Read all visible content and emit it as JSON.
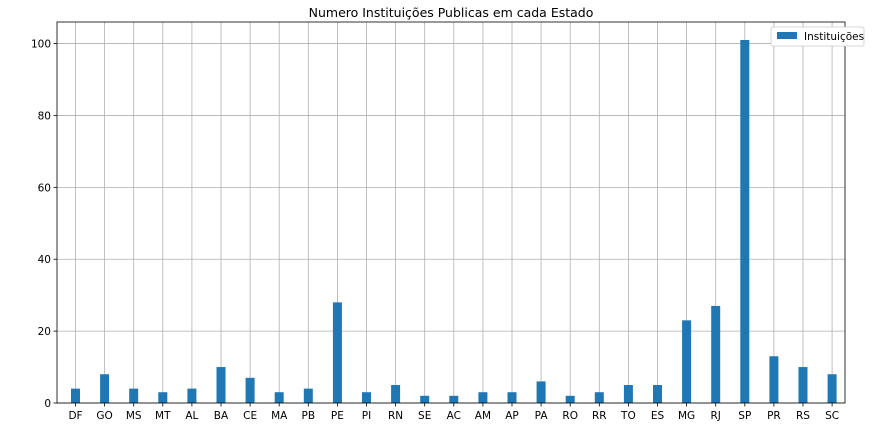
{
  "chart_data": {
    "type": "bar",
    "title": "Numero Instituições Publicas em cada Estado",
    "xlabel": "",
    "ylabel": "",
    "categories": [
      "DF",
      "GO",
      "MS",
      "MT",
      "AL",
      "BA",
      "CE",
      "MA",
      "PB",
      "PE",
      "PI",
      "RN",
      "SE",
      "AC",
      "AM",
      "AP",
      "PA",
      "RO",
      "RR",
      "TO",
      "ES",
      "MG",
      "RJ",
      "SP",
      "PR",
      "RS",
      "SC"
    ],
    "series": [
      {
        "name": "Instituições",
        "values": [
          4,
          8,
          4,
          3,
          4,
          10,
          7,
          3,
          4,
          28,
          3,
          5,
          2,
          2,
          3,
          3,
          6,
          2,
          3,
          5,
          5,
          23,
          27,
          101,
          13,
          10,
          8
        ]
      }
    ],
    "ylim": [
      0,
      106
    ],
    "yticks": [
      0,
      20,
      40,
      60,
      80,
      100
    ],
    "grid": true,
    "legend_position": "top-right",
    "colors": {
      "bar": "#1f77b4"
    }
  }
}
